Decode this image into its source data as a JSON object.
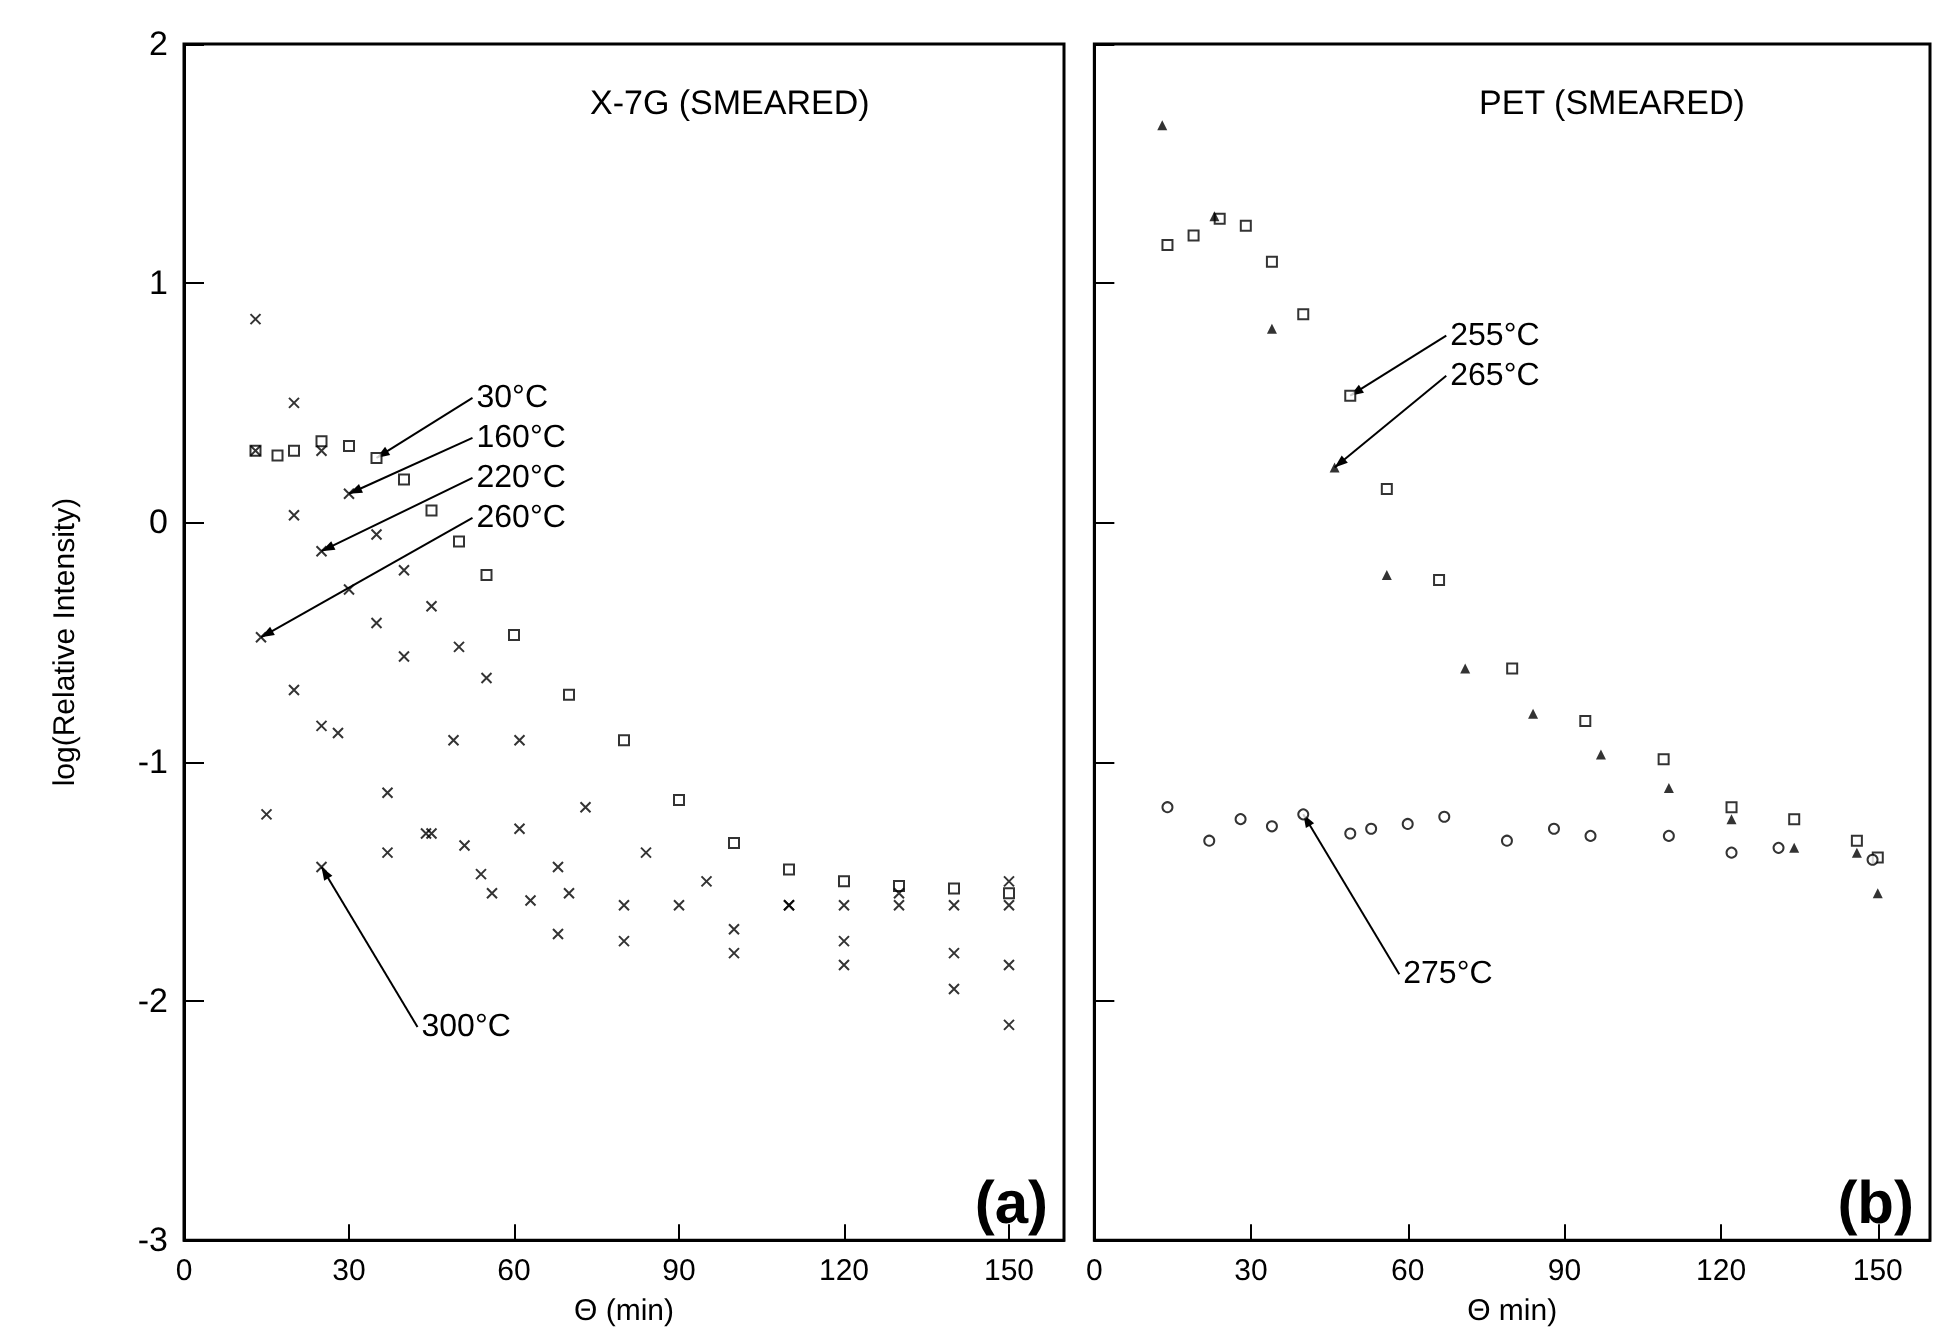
{
  "chart_data": [
    {
      "type": "scatter",
      "title": "X-7G (SMEARED)",
      "xlabel": "Θ (min)",
      "ylabel": "log(Relative Intensity)",
      "xlim": [
        0,
        160
      ],
      "ylim": [
        -3,
        2
      ],
      "xticks": [
        0,
        30,
        60,
        90,
        120,
        150
      ],
      "yticks": [
        -3,
        -2,
        -1,
        0,
        1,
        2
      ],
      "series": [
        {
          "color": "#000000",
          "marker": "square",
          "x": [
            13,
            17,
            20,
            25,
            30,
            35,
            40,
            45,
            50,
            55,
            60,
            70,
            80,
            90,
            100,
            110,
            120,
            130,
            140,
            150
          ],
          "values": [
            0.3,
            0.28,
            0.3,
            0.34,
            0.32,
            0.27,
            0.18,
            0.05,
            -0.08,
            -0.22,
            -0.47,
            -0.72,
            -0.91,
            -1.16,
            -1.34,
            -1.45,
            -1.5,
            -1.52,
            -1.53,
            -1.55
          ]
        },
        {
          "color": "#000000",
          "marker": "cross",
          "x": [
            13,
            20,
            25,
            30,
            35,
            40,
            45,
            50,
            55,
            61,
            73,
            84,
            95,
            110,
            120,
            130,
            140,
            150
          ],
          "values": [
            0.85,
            0.5,
            0.3,
            0.12,
            -0.05,
            -0.2,
            -0.35,
            -0.52,
            -0.65,
            -0.91,
            -1.19,
            -1.38,
            -1.5,
            -1.6,
            -1.6,
            -1.6,
            -1.6,
            -1.6
          ]
        },
        {
          "color": "#000000",
          "marker": "cross",
          "x": [
            13,
            20,
            25,
            30,
            35,
            40,
            49,
            61,
            68,
            80,
            100,
            120,
            140,
            150
          ],
          "values": [
            0.3,
            0.03,
            -0.12,
            -0.28,
            -0.42,
            -0.56,
            -0.91,
            -1.28,
            -1.44,
            -1.6,
            -1.7,
            -1.75,
            -1.8,
            -1.85
          ]
        },
        {
          "color": "#000000",
          "marker": "cross",
          "x": [
            14,
            20,
            25,
            28,
            37,
            45,
            54,
            63,
            68,
            80,
            100,
            120,
            140,
            150
          ],
          "values": [
            -0.48,
            -0.7,
            -0.85,
            -0.88,
            -1.13,
            -1.3,
            -1.47,
            -1.58,
            -1.72,
            -1.75,
            -1.8,
            -1.85,
            -1.95,
            -2.1
          ]
        },
        {
          "color": "#000000",
          "marker": "cross",
          "x": [
            15,
            25,
            37,
            44,
            51,
            56,
            70,
            90,
            110,
            130,
            150
          ],
          "values": [
            -1.22,
            -1.44,
            -1.38,
            -1.3,
            -1.35,
            -1.55,
            -1.55,
            -1.6,
            -1.6,
            -1.55,
            -1.5
          ]
        }
      ],
      "annotations": [
        {
          "text": "30°C",
          "x": 35,
          "y": 0.27
        },
        {
          "text": "160°C",
          "x": 30,
          "y": 0.12
        },
        {
          "text": "220°C",
          "x": 25,
          "y": -0.12
        },
        {
          "text": "260°C",
          "x": 14,
          "y": -0.48
        },
        {
          "text": "300°C",
          "x": 25,
          "y": -1.44
        },
        "(a)"
      ]
    },
    {
      "type": "scatter",
      "title": "PET (SMEARED)",
      "xlabel": "Θ min)",
      "xlim": [
        0,
        160
      ],
      "ylim": [
        -3,
        2
      ],
      "xticks": [
        0,
        30,
        60,
        90,
        120,
        150
      ],
      "yticks": [
        -3,
        -2,
        -1,
        0,
        1,
        2
      ],
      "tick_labels": "x",
      "series": [
        {
          "color": "#000000",
          "marker": "square",
          "x": [
            14,
            19,
            24,
            29,
            34,
            40,
            49,
            56,
            66,
            80,
            94,
            109,
            122,
            134,
            146,
            150
          ],
          "values": [
            1.16,
            1.2,
            1.27,
            1.24,
            1.09,
            0.87,
            0.53,
            0.14,
            -0.24,
            -0.61,
            -0.83,
            -0.99,
            -1.19,
            -1.24,
            -1.33,
            -1.4
          ]
        },
        {
          "color": "#000000",
          "marker": "triangle",
          "x": [
            13,
            23,
            34,
            46,
            56,
            71,
            84,
            97,
            110,
            122,
            134,
            146,
            150
          ],
          "values": [
            1.66,
            1.28,
            0.81,
            0.23,
            -0.22,
            -0.61,
            -0.8,
            -0.97,
            -1.11,
            -1.24,
            -1.36,
            -1.38,
            -1.55
          ]
        },
        {
          "color": "#000000",
          "marker": "circle",
          "x": [
            14,
            22,
            28,
            34,
            40,
            49,
            53,
            60,
            67,
            79,
            88,
            95,
            110,
            122,
            131,
            149
          ],
          "values": [
            -1.19,
            -1.33,
            -1.24,
            -1.27,
            -1.22,
            -1.3,
            -1.28,
            -1.26,
            -1.23,
            -1.33,
            -1.28,
            -1.31,
            -1.31,
            -1.38,
            -1.36,
            -1.41
          ]
        }
      ],
      "annotations": [
        {
          "text": "255°C",
          "x": 49,
          "y": 0.53
        },
        {
          "text": "265°C",
          "x": 46,
          "y": 0.23
        },
        {
          "text": "275°C",
          "x": 40,
          "y": -1.22
        },
        "(b)"
      ]
    }
  ]
}
